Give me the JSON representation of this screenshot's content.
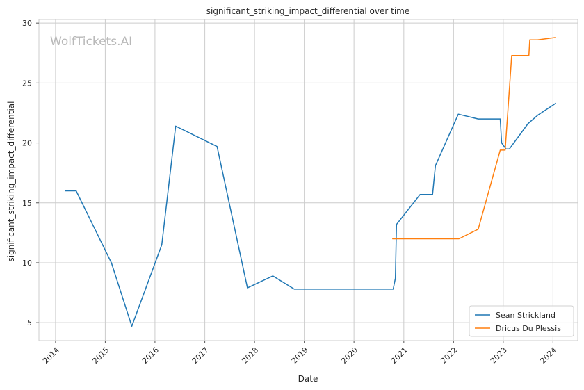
{
  "chart_data": {
    "type": "line",
    "title": "significant_striking_impact_differential over time",
    "xlabel": "Date",
    "ylabel": "significant_striking_impact_differential",
    "watermark": "WolfTickets.AI",
    "x_ticks": [
      "2014",
      "2015",
      "2016",
      "2017",
      "2018",
      "2019",
      "2020",
      "2021",
      "2022",
      "2023",
      "2024"
    ],
    "y_ticks": [
      "5",
      "10",
      "15",
      "20",
      "25",
      "30"
    ],
    "xlim": [
      "2013-09-01",
      "2024-07-01"
    ],
    "ylim": [
      3.5,
      30.3
    ],
    "grid": true,
    "legend_position": "lower right",
    "series": [
      {
        "name": "Sean Strickland",
        "color": "#1f77b4",
        "points": [
          [
            "2014-03-15",
            16.0
          ],
          [
            "2014-06-01",
            16.0
          ],
          [
            "2015-02-15",
            10.0
          ],
          [
            "2015-07-15",
            4.7
          ],
          [
            "2016-02-20",
            11.5
          ],
          [
            "2016-06-01",
            21.4
          ],
          [
            "2017-04-01",
            19.7
          ],
          [
            "2017-11-10",
            7.9
          ],
          [
            "2018-05-15",
            8.9
          ],
          [
            "2018-10-20",
            7.8
          ],
          [
            "2020-10-15",
            7.8
          ],
          [
            "2020-10-31",
            8.7
          ],
          [
            "2020-11-08",
            13.2
          ],
          [
            "2021-05-01",
            15.7
          ],
          [
            "2021-07-31",
            15.7
          ],
          [
            "2021-08-21",
            18.1
          ],
          [
            "2022-02-05",
            22.4
          ],
          [
            "2022-07-01",
            22.0
          ],
          [
            "2022-12-10",
            22.0
          ],
          [
            "2022-12-20",
            20.0
          ],
          [
            "2023-01-21",
            19.5
          ],
          [
            "2023-02-15",
            19.5
          ],
          [
            "2023-07-01",
            21.6
          ],
          [
            "2023-09-10",
            22.3
          ],
          [
            "2024-01-20",
            23.3
          ]
        ]
      },
      {
        "name": "Dricus Du Plessis",
        "color": "#ff7f0e",
        "points": [
          [
            "2020-10-11",
            12.0
          ],
          [
            "2022-02-10",
            12.0
          ],
          [
            "2022-07-01",
            12.8
          ],
          [
            "2022-12-10",
            19.4
          ],
          [
            "2023-01-15",
            19.4
          ],
          [
            "2023-03-04",
            27.3
          ],
          [
            "2023-07-08",
            27.3
          ],
          [
            "2023-07-15",
            28.6
          ],
          [
            "2023-09-10",
            28.6
          ],
          [
            "2024-01-20",
            28.8
          ]
        ]
      }
    ]
  }
}
